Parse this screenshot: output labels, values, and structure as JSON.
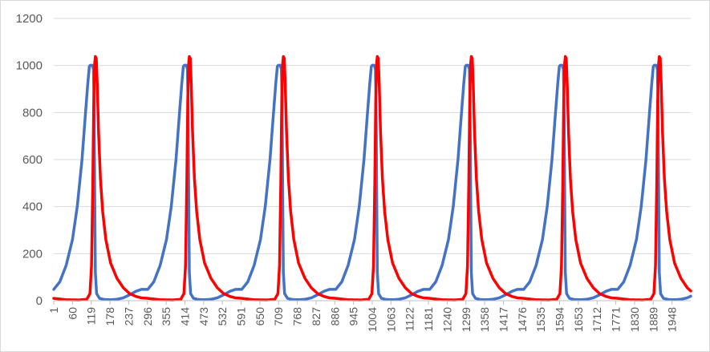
{
  "chart_data": {
    "type": "line",
    "title": "",
    "xlabel": "",
    "ylabel": "",
    "ylim": [
      0,
      1200
    ],
    "yticks": [
      0,
      200,
      400,
      600,
      800,
      1000,
      1200
    ],
    "xlim": [
      1,
      2007
    ],
    "categories_shown": [
      "1",
      "60",
      "119",
      "178",
      "237",
      "296",
      "355",
      "414",
      "473",
      "532",
      "591",
      "650",
      "709",
      "768",
      "827",
      "886",
      "945",
      "1004",
      "1063",
      "1122",
      "1181",
      "1240",
      "1299",
      "1358",
      "1417",
      "1476",
      "1535",
      "1594",
      "1653",
      "1712",
      "1771",
      "1830",
      "1889",
      "1948"
    ],
    "grid": "horizontal",
    "legend": "none",
    "period": 296,
    "series": [
      {
        "color": "#4472C4",
        "points": [
          [
            1,
            48
          ],
          [
            20,
            80
          ],
          [
            40,
            150
          ],
          [
            60,
            260
          ],
          [
            75,
            400
          ],
          [
            90,
            600
          ],
          [
            100,
            780
          ],
          [
            108,
            920
          ],
          [
            113,
            995
          ],
          [
            116,
            1001
          ],
          [
            122,
            1001
          ],
          [
            126,
            985
          ],
          [
            128,
            850
          ],
          [
            130,
            450
          ],
          [
            132,
            120
          ],
          [
            136,
            30
          ],
          [
            145,
            10
          ],
          [
            160,
            5
          ],
          [
            180,
            4
          ],
          [
            200,
            6
          ],
          [
            220,
            12
          ],
          [
            240,
            25
          ],
          [
            260,
            40
          ],
          [
            277,
            48
          ]
        ]
      },
      {
        "color": "#FF0000",
        "points": [
          [
            1,
            10
          ],
          [
            40,
            4
          ],
          [
            80,
            3
          ],
          [
            105,
            6
          ],
          [
            115,
            30
          ],
          [
            120,
            150
          ],
          [
            124,
            500
          ],
          [
            127,
            850
          ],
          [
            130,
            1010
          ],
          [
            132,
            1038
          ],
          [
            135,
            1030
          ],
          [
            138,
            920
          ],
          [
            142,
            720
          ],
          [
            148,
            520
          ],
          [
            155,
            380
          ],
          [
            165,
            260
          ],
          [
            180,
            160
          ],
          [
            200,
            95
          ],
          [
            220,
            55
          ],
          [
            240,
            30
          ],
          [
            260,
            18
          ],
          [
            277,
            12
          ]
        ]
      }
    ]
  }
}
